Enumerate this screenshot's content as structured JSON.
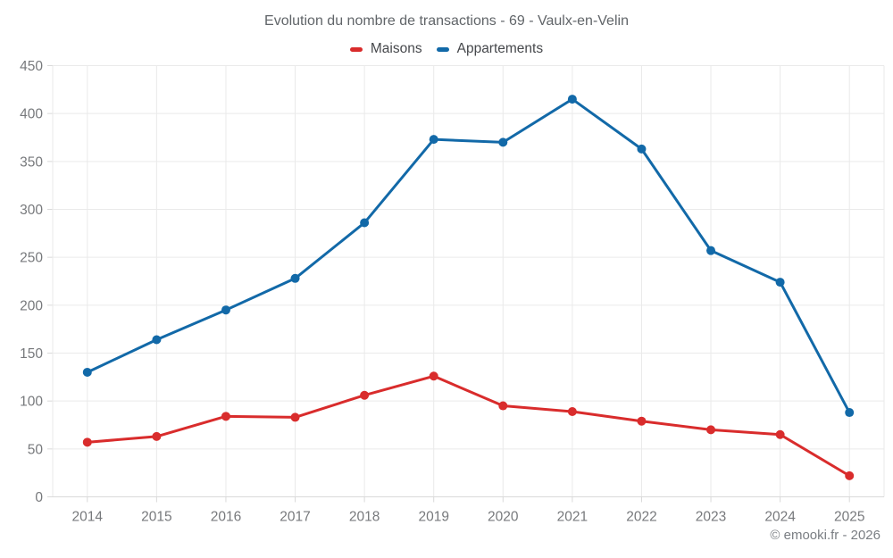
{
  "chart_data": {
    "type": "line",
    "title": "Evolution du nombre de transactions - 69 - Vaulx-en-Velin",
    "x": [
      "2014",
      "2015",
      "2016",
      "2017",
      "2018",
      "2019",
      "2020",
      "2021",
      "2022",
      "2023",
      "2024",
      "2025"
    ],
    "series": [
      {
        "name": "Maisons",
        "color": "#d92c2c",
        "values": [
          57,
          63,
          84,
          83,
          106,
          126,
          95,
          89,
          79,
          70,
          65,
          22
        ]
      },
      {
        "name": "Appartements",
        "color": "#1269a8",
        "values": [
          130,
          164,
          195,
          228,
          286,
          373,
          370,
          415,
          363,
          257,
          224,
          88
        ]
      }
    ],
    "xlabel": "",
    "ylabel": "",
    "ylim": [
      0,
      450
    ],
    "ytick_step": 50,
    "grid": true,
    "legend_position": "top"
  },
  "colors": {
    "gridline": "#eaeaea",
    "axis_line": "#d9d9d9",
    "tick_label": "#77797c"
  },
  "footer": {
    "copyright": "© emooki.fr - 2026"
  }
}
